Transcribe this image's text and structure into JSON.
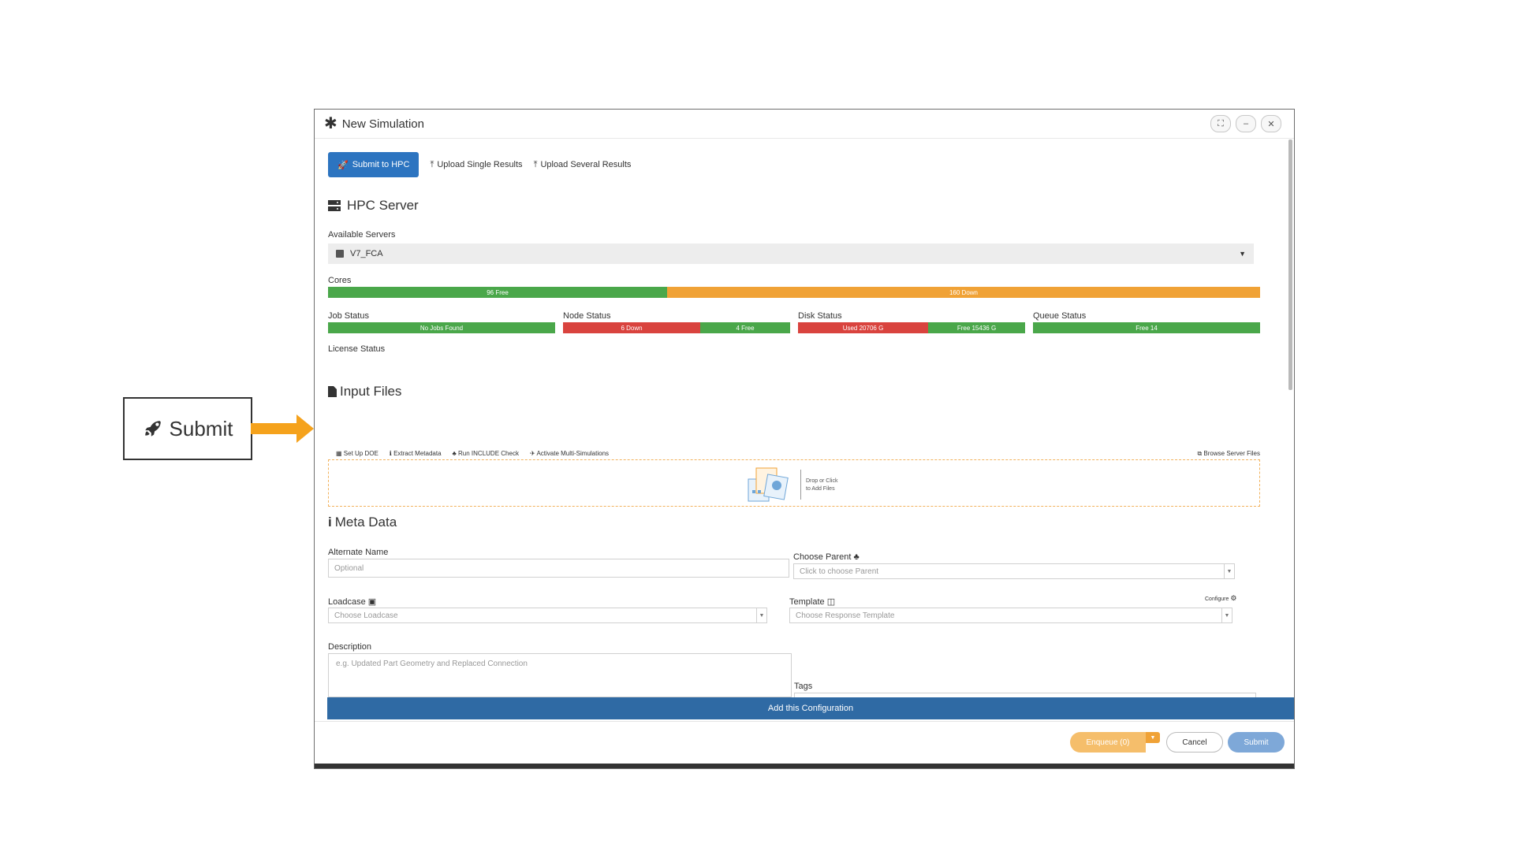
{
  "callout": {
    "label": "Submit",
    "icon": "rocket-icon"
  },
  "dialog": {
    "title": "New Simulation",
    "tabs": {
      "submit_hpc": "Submit to HPC",
      "upload_single": "Upload Single Results",
      "upload_several": "Upload Several Results"
    },
    "hpc_server": {
      "title": "HPC Server",
      "available_label": "Available Servers",
      "selected_server": "V7_FCA",
      "cores_label": "Cores",
      "cores_free": "96 Free",
      "cores_down": "160 Down",
      "job_status_label": "Job Status",
      "job_status_text": "No Jobs Found",
      "node_status_label": "Node Status",
      "node_down": "6 Down",
      "node_free": "4 Free",
      "disk_status_label": "Disk Status",
      "disk_used": "Used 20706 G",
      "disk_free": "Free 15436 G",
      "queue_status_label": "Queue Status",
      "queue_free": "Free 14",
      "license_status_label": "License Status"
    },
    "input_files": {
      "title": "Input Files",
      "tools": {
        "setup_doe": "Set Up DOE",
        "extract_metadata": "Extract Metadata",
        "run_include": "Run INCLUDE Check",
        "multi_sim": "Activate Multi-Simulations"
      },
      "browse_server": "Browse Server Files",
      "drop_text": "Drop or Click\nto Add Files"
    },
    "meta": {
      "title": "Meta Data",
      "alternate_label": "Alternate Name",
      "alternate_placeholder": "Optional",
      "parent_label": "Choose Parent",
      "parent_placeholder": "Click to choose Parent",
      "loadcase_label": "Loadcase",
      "loadcase_placeholder": "Choose Loadcase",
      "template_label": "Template",
      "configure": "Configure",
      "template_placeholder": "Choose Response Template",
      "description_label": "Description",
      "description_placeholder": "e.g. Updated Part Geometry and Replaced Connection",
      "tags_label": "Tags"
    },
    "add_config": "Add this Configuration",
    "footer": {
      "enqueue": "Enqueue (0)",
      "cancel": "Cancel",
      "submit": "Submit"
    }
  },
  "colors": {
    "primary": "#2c74c0",
    "free": "#4aa74a",
    "down": "#d9433e",
    "warn": "#f0a236"
  }
}
